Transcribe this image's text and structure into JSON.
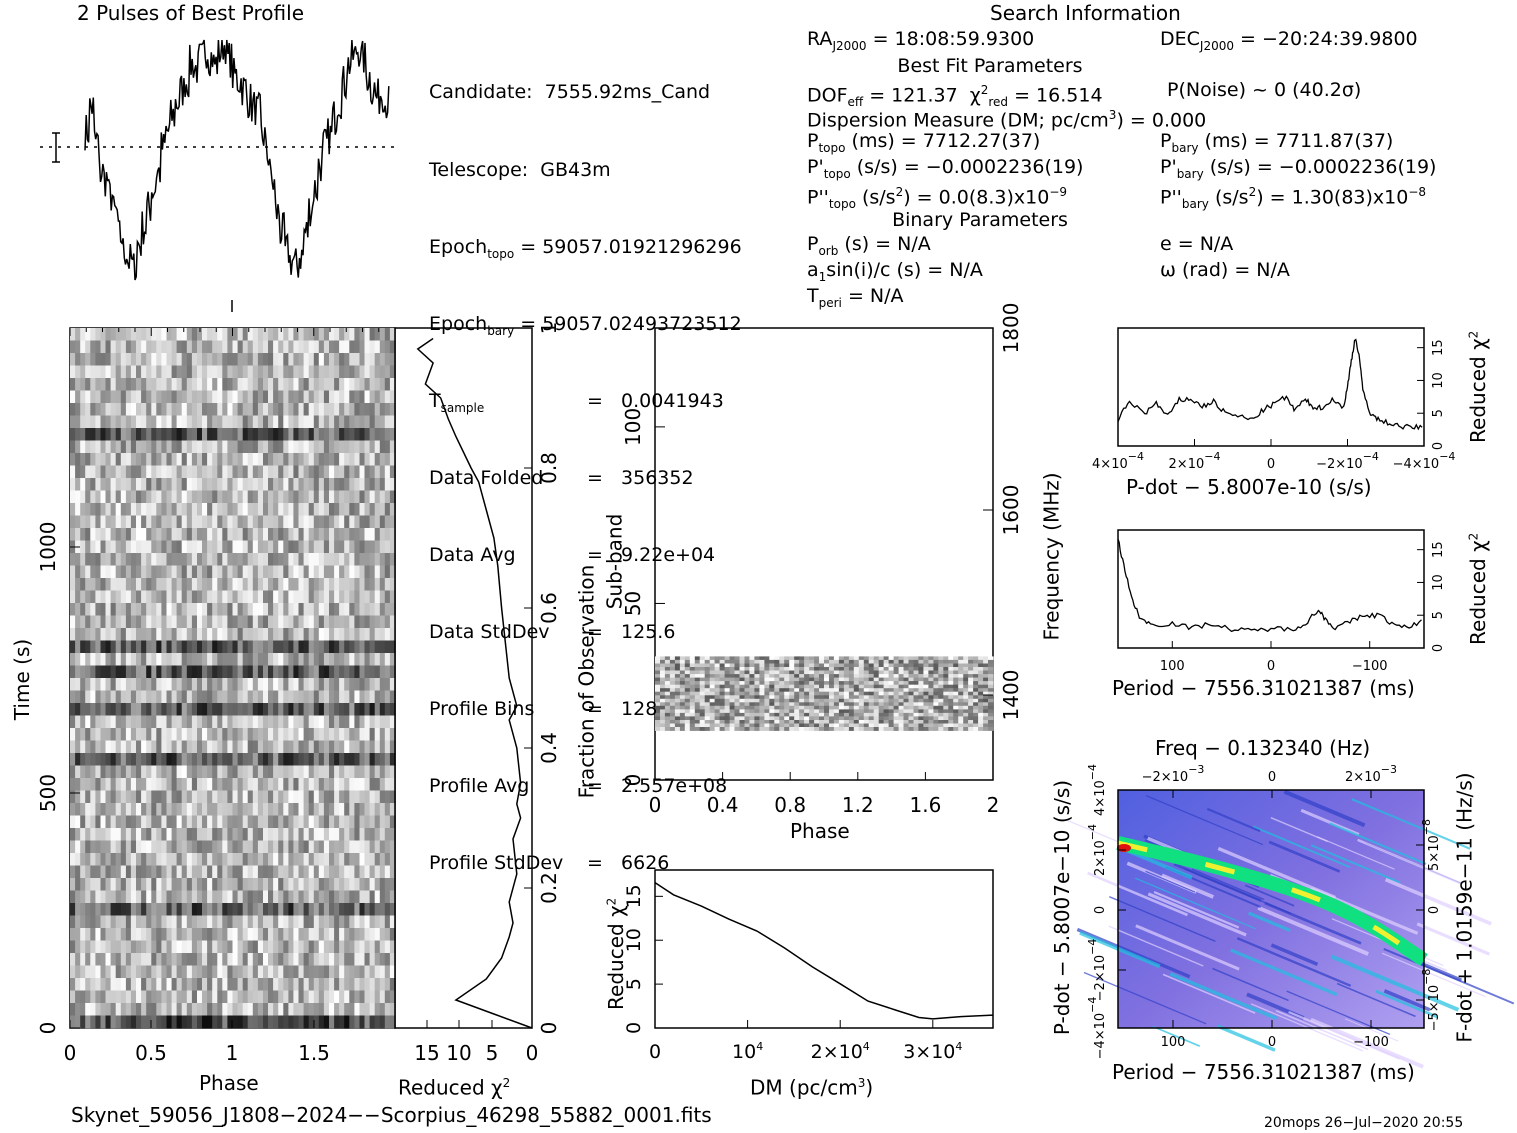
{
  "colors": {
    "ink": "#000000",
    "dd_high": "#e01010",
    "dd_mid": "#00e070",
    "dd_low": "#3050e0",
    "dd_bg": "#c8b8f0"
  },
  "titles": {
    "profile": "2 Pulses of Best Profile",
    "search": "Search Information",
    "best_fit": "Best Fit Parameters",
    "binary": "Binary Parameters",
    "footer_file": "Skynet_59056_J1808−2024−−Scorpius_46298_55882_0001.fits",
    "footer_stamp": "20mops  26−Jul−2020 20:55"
  },
  "info": {
    "col1_labels": [
      "Candidate:  7555.92ms_Cand",
      "Telescope:  GB43m",
      "Epoch",
      "Epoch",
      "T",
      "Data Folded",
      "Data Avg",
      "Data StdDev",
      "Profile Bins",
      "Profile Avg",
      "Profile StdDev"
    ],
    "col1_subs": [
      "",
      "",
      "topo",
      "bary",
      "sample",
      "",
      "",
      "",
      "",
      "",
      ""
    ],
    "col1_values": [
      "",
      "",
      "= 59057.01921296296",
      "= 59057.02493723512",
      "=   0.0041943",
      "=   356352",
      "=   9.22e+04",
      "=   125.6",
      "=   128",
      "=   2.557e+08",
      "=   6626"
    ],
    "ra": "= 18:08:59.9300",
    "dec": "= −20:24:39.9800",
    "dof": "= 121.37",
    "chi2": "= 16.514",
    "pnoise": "P(Noise) ~ 0    (40.2σ)",
    "dm": "Dispersion Measure (DM; pc/cm",
    "dm_value": ") = 0.000",
    "p_topo": "(ms) =  7712.27(37)",
    "pd_topo": "(s/s) = −0.0002236(19)",
    "pdd_topo": ") = 0.0(8.3)x10",
    "pdd_topo_exp": "−9",
    "p_bary": "(ms) =  7711.87(37)",
    "pd_bary": "(s/s) = −0.0002236(19)",
    "pdd_bary": ") =  1.30(83)x10",
    "pdd_bary_exp": "−8",
    "porb": "(s) = N/A",
    "asini": "sin(i)/c (s) = N/A",
    "tperi": "= N/A",
    "ecc": "e = N/A",
    "omega": "ω (rad) = N/A"
  },
  "chart_data": [
    {
      "type": "line",
      "name": "profile",
      "xlim": [
        0,
        2
      ],
      "x_ticks_unlabeled": true,
      "values": [
        0.62,
        0.72,
        0.58,
        0.45,
        0.42,
        0.35,
        0.28,
        0.18,
        0.12,
        0.08,
        0.05,
        0.15,
        0.22,
        0.3,
        0.38,
        0.45,
        0.55,
        0.62,
        0.68,
        0.74,
        0.79,
        0.83,
        0.9,
        0.88,
        0.92,
        0.96,
        0.93,
        0.9,
        0.95,
        0.98,
        0.92,
        0.85,
        0.83,
        0.8,
        0.75,
        0.72,
        0.7,
        0.6,
        0.52,
        0.4,
        0.28,
        0.2,
        0.12,
        0.08,
        0.06,
        0.1,
        0.2,
        0.3,
        0.38,
        0.48,
        0.56,
        0.6,
        0.68,
        0.75,
        0.82,
        0.9,
        0.93,
        0.96,
        0.92,
        0.85,
        0.8,
        0.76,
        0.78,
        0.74
      ]
    },
    {
      "type": "heatmap",
      "name": "time-phase",
      "xlabel": "Phase",
      "ylabel": "Time (s)",
      "x_ticks": [
        "0",
        "0.5",
        "1",
        "1.5"
      ],
      "y_ticks": [
        "0",
        "500",
        "1000"
      ],
      "y2label": "Fraction of Observation",
      "y2_ticks": [
        "0",
        "0.2",
        "0.4",
        "0.6",
        "0.8",
        "1"
      ],
      "xlim": [
        0,
        2
      ],
      "ylim": [
        0,
        1380
      ]
    },
    {
      "type": "line",
      "name": "time-chi2",
      "xlabel": "Reduced χ",
      "xlabel_exp": "2",
      "x_ticks": [
        "15",
        "10",
        "5",
        "0"
      ],
      "xlim": [
        18,
        0
      ],
      "ylim": [
        0,
        1
      ],
      "points": [
        [
          13,
          0.985
        ],
        [
          15,
          0.97
        ],
        [
          13,
          0.95
        ],
        [
          14,
          0.92
        ],
        [
          12,
          0.9
        ],
        [
          11,
          0.87
        ],
        [
          10,
          0.845
        ],
        [
          8,
          0.8
        ],
        [
          7,
          0.78
        ],
        [
          6,
          0.74
        ],
        [
          5,
          0.7
        ],
        [
          4.5,
          0.66
        ],
        [
          4,
          0.6
        ],
        [
          3.5,
          0.55
        ],
        [
          3,
          0.5
        ],
        [
          2,
          0.46
        ],
        [
          3,
          0.44
        ],
        [
          2,
          0.4
        ],
        [
          1.5,
          0.35
        ],
        [
          2,
          0.32
        ],
        [
          1.5,
          0.3
        ],
        [
          2.5,
          0.27
        ],
        [
          2,
          0.22
        ],
        [
          3,
          0.18
        ],
        [
          2.5,
          0.15
        ],
        [
          3,
          0.13
        ],
        [
          4,
          0.1
        ],
        [
          6,
          0.07
        ],
        [
          10,
          0.04
        ],
        [
          5,
          0.02
        ],
        [
          0,
          0.0
        ]
      ]
    },
    {
      "type": "heatmap",
      "name": "subband-phase",
      "xlabel": "Phase",
      "ylabel": "Sub-band",
      "x_ticks": [
        "0",
        "0.4",
        "0.8",
        "1.2",
        "1.6",
        "2"
      ],
      "y_ticks": [
        "0",
        "50",
        "100"
      ],
      "y2label": "Frequency (MHz)",
      "y2_ticks": [
        "1400",
        "1600",
        "1800"
      ],
      "xlim": [
        0,
        2
      ],
      "ylim": [
        0,
        128
      ],
      "band": [
        14,
        35
      ]
    },
    {
      "type": "line",
      "name": "dm-chi2",
      "xlabel": "DM (pc/cm",
      "xlabel_exp": "3",
      "xlabel_end": ")",
      "ylabel": "Reduced χ",
      "ylabel_exp": "2",
      "x_ticks": [
        "0",
        "10",
        "2×10",
        "3×10"
      ],
      "x_tick_exp": "4",
      "y_ticks": [
        "0",
        "5",
        "10",
        "15"
      ],
      "xlim": [
        0,
        36500
      ],
      "ylim": [
        0,
        18
      ],
      "points": [
        [
          0,
          16.5
        ],
        [
          2000,
          15.2
        ],
        [
          5000,
          14
        ],
        [
          8000,
          12.5
        ],
        [
          11000,
          11
        ],
        [
          14000,
          9
        ],
        [
          17000,
          7
        ],
        [
          20000,
          5
        ],
        [
          23000,
          3.2
        ],
        [
          26000,
          1.9
        ],
        [
          28500,
          1.1
        ],
        [
          30000,
          0.9
        ],
        [
          33000,
          1.2
        ],
        [
          36500,
          1.5
        ]
      ]
    },
    {
      "type": "line",
      "name": "pdot-chi2",
      "xlabel": "P-dot − 5.8007e-10 (s/s)",
      "ylabel": "Reduced χ",
      "ylabel_exp": "2",
      "x_ticks": [
        "4×10",
        "2×10",
        "0",
        "−2×10",
        "−4×10"
      ],
      "x_tick_exp": "−4",
      "y_ticks": [
        "0",
        "5",
        "10",
        "15"
      ],
      "xlim": [
        0.0004,
        -0.0004
      ],
      "ylim": [
        0,
        18
      ],
      "points": [
        [
          0.0004,
          4.0
        ],
        [
          0.00037,
          6.8
        ],
        [
          0.00033,
          5.0
        ],
        [
          0.0003,
          6.5
        ],
        [
          0.00027,
          4.5
        ],
        [
          0.00024,
          7.0
        ],
        [
          0.00021,
          7.2
        ],
        [
          0.00018,
          6.0
        ],
        [
          0.00015,
          6.8
        ],
        [
          0.00012,
          5.0
        ],
        [
          8e-05,
          4.5
        ],
        [
          5e-05,
          4.0
        ],
        [
          2e-05,
          5.5
        ],
        [
          -1e-05,
          6.5
        ],
        [
          -4e-05,
          7.5
        ],
        [
          -6e-05,
          5.5
        ],
        [
          -9e-05,
          7.0
        ],
        [
          -0.00011,
          6.0
        ],
        [
          -0.00013,
          5.8
        ],
        [
          -0.00016,
          7.0
        ],
        [
          -0.00019,
          6.0
        ],
        [
          -0.0002,
          9.0
        ],
        [
          -0.00021,
          13.0
        ],
        [
          -0.00022,
          16.5
        ],
        [
          -0.00023,
          14.0
        ],
        [
          -0.00024,
          8.5
        ],
        [
          -0.00026,
          5.0
        ],
        [
          -0.00028,
          4.0
        ],
        [
          -0.00031,
          3.5
        ],
        [
          -0.00034,
          3.0
        ],
        [
          -0.00037,
          2.8
        ],
        [
          -0.0004,
          3.0
        ]
      ]
    },
    {
      "type": "line",
      "name": "period-chi2",
      "xlabel": "Period − 7556.31021387 (ms)",
      "ylabel": "Reduced χ",
      "ylabel_exp": "2",
      "x_ticks": [
        "100",
        "0",
        "−100"
      ],
      "y_ticks": [
        "0",
        "5",
        "10",
        "15"
      ],
      "xlim": [
        155,
        -155
      ],
      "ylim": [
        0,
        18
      ],
      "points": [
        [
          155,
          16.5
        ],
        [
          148,
          12
        ],
        [
          140,
          7
        ],
        [
          132,
          4.5
        ],
        [
          120,
          3.5
        ],
        [
          100,
          3.8
        ],
        [
          80,
          3.0
        ],
        [
          60,
          3.8
        ],
        [
          40,
          2.8
        ],
        [
          20,
          2.6
        ],
        [
          0,
          3.0
        ],
        [
          -20,
          2.8
        ],
        [
          -35,
          3.8
        ],
        [
          -48,
          5.8
        ],
        [
          -55,
          4.5
        ],
        [
          -65,
          3.0
        ],
        [
          -80,
          4.0
        ],
        [
          -95,
          5.0
        ],
        [
          -110,
          5.0
        ],
        [
          -125,
          3.5
        ],
        [
          -140,
          3.0
        ],
        [
          -155,
          4.5
        ]
      ]
    },
    {
      "type": "heatmap",
      "name": "pdot-period",
      "title": "Freq − 0.132340 (Hz)",
      "xlabel": "Period − 7556.31021387 (ms)",
      "ylabel": "P-dot − 5.8007e−10 (s/s)",
      "y2label": "F-dot + 1.0159e−11 (Hz/s)",
      "x_ticks": [
        "100",
        "0",
        "−100"
      ],
      "x2_ticks": [
        "−2×10",
        "0",
        "2×10"
      ],
      "x2_tick_exp": "−3",
      "y_ticks": [
        "4×10",
        "2×10",
        "0",
        "−2×10",
        "−4×10"
      ],
      "y_tick_exp": "−4",
      "y2_ticks": [
        "5×10",
        "0",
        "−5×10"
      ],
      "y2_tick_exp": "−8",
      "xlim": [
        155,
        -155
      ],
      "ylim": [
        0.0004,
        -0.0004
      ]
    }
  ]
}
